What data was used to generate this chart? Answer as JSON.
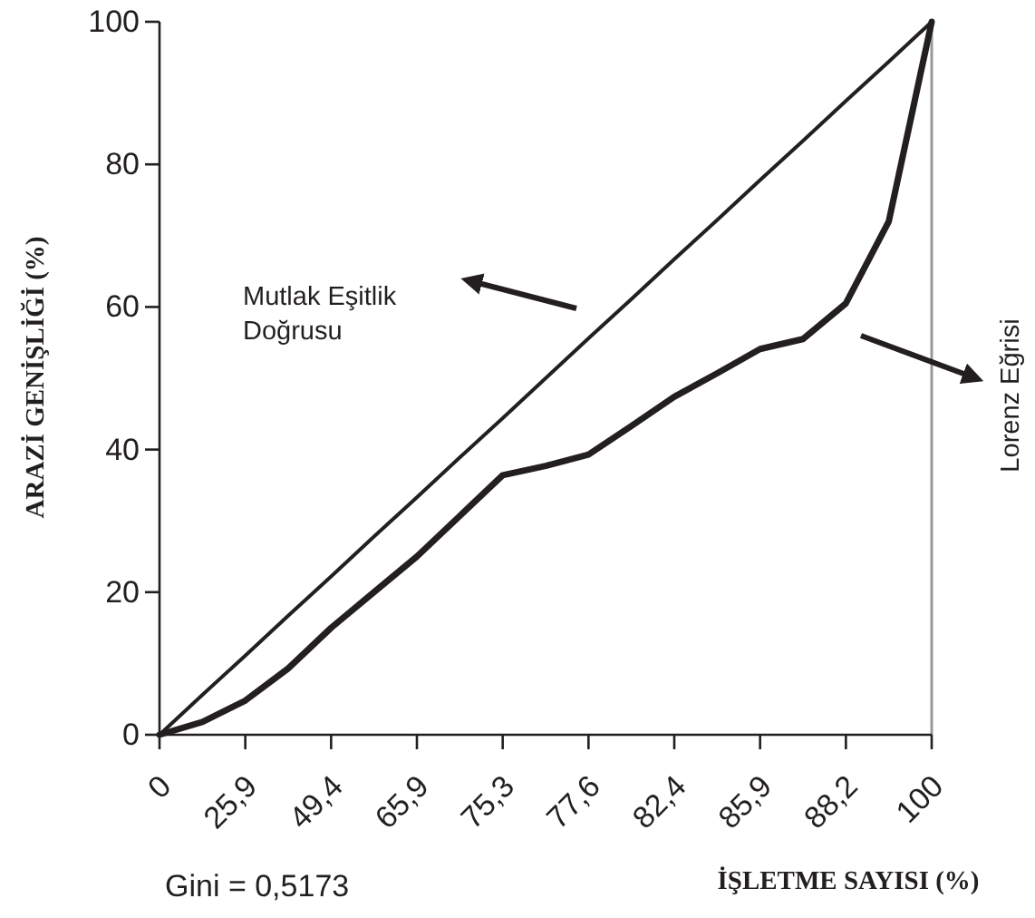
{
  "chart_data": {
    "type": "line",
    "xlabel": "İŞLETME SAYISI (%)",
    "ylabel": "ARAZİ GENİŞLİĞİ (%)",
    "categories": [
      "0",
      null,
      "25,9",
      null,
      "49,4",
      null,
      "65,9",
      null,
      "75,3",
      null,
      "77,6",
      null,
      "82,4",
      null,
      "85,9",
      null,
      "88,2",
      null,
      "100"
    ],
    "series": [
      {
        "color": "#231f20",
        "line_style": "solid",
        "values": [
          0,
          5.6,
          11.1,
          16.7,
          22.2,
          27.8,
          33.3,
          38.9,
          44.4,
          50,
          55.6,
          61.1,
          66.7,
          72.2,
          77.8,
          83.3,
          88.9,
          94.4,
          100
        ]
      },
      {
        "color": "#231f20",
        "line_style": "solid",
        "values": [
          0,
          1.8,
          4.8,
          9.3,
          15,
          20,
          25,
          30.7,
          36.4,
          37.7,
          39.3,
          43.3,
          47.4,
          50.7,
          54.1,
          55.5,
          60.5,
          72,
          100
        ]
      }
    ],
    "ylim": [
      0,
      100
    ],
    "yticks": [
      0,
      20,
      40,
      60,
      80,
      100
    ],
    "grid": false,
    "marker": "none",
    "annotations": [
      "Mutlak Eşitlik Doğrusu",
      "Lorenz Eğrisi",
      "Gini = 0,5173"
    ]
  }
}
